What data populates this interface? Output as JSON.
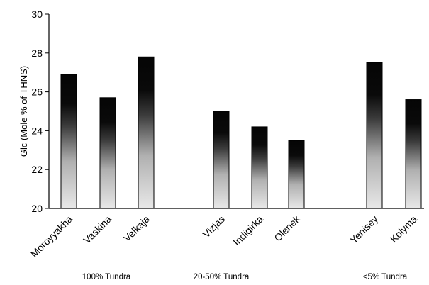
{
  "chart_data": {
    "type": "bar",
    "title": "",
    "xlabel": "",
    "ylabel": "Glc (Mole % of THNS)",
    "ylim": [
      20,
      30
    ],
    "yticks": [
      20,
      22,
      24,
      26,
      28,
      30
    ],
    "grid": false,
    "legend": "none",
    "categories": [
      "Moroyyakha",
      "Vaskina",
      "Velkaja",
      "Vizjas",
      "Indigirka",
      "Olenek",
      "Yenisey",
      "Kolyma"
    ],
    "values": [
      26.9,
      25.7,
      27.8,
      25.0,
      24.2,
      23.5,
      27.5,
      25.6
    ],
    "groups": [
      {
        "label": "100% Tundra",
        "categories": [
          "Moroyyakha",
          "Vaskina",
          "Velkaja"
        ]
      },
      {
        "label": "20-50% Tundra",
        "categories": [
          "Vizjas",
          "Indigirka",
          "Olenek"
        ]
      },
      {
        "label": "<5% Tundra",
        "categories": [
          "Yenisey",
          "Kolyma"
        ]
      }
    ],
    "colors": {
      "gradient_top": "#050505",
      "gradient_bottom": "#e6e6e6",
      "axis": "#000000"
    }
  }
}
